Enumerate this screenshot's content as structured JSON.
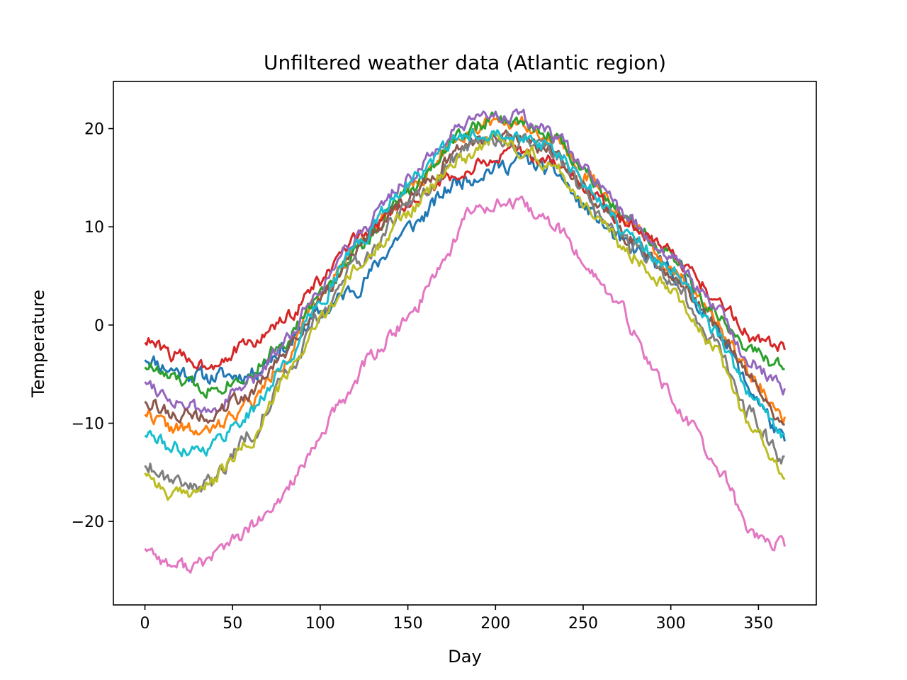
{
  "chart_data": {
    "type": "line",
    "title": "Unfiltered weather data (Atlantic region)",
    "xlabel": "Day",
    "ylabel": "Temperature",
    "xlim": [
      -18,
      383
    ],
    "ylim": [
      -28.5,
      24.8
    ],
    "xticks": [
      0,
      50,
      100,
      150,
      200,
      250,
      300,
      350
    ],
    "yticks": [
      -20,
      -10,
      0,
      10,
      20
    ],
    "xtick_labels": [
      "0",
      "50",
      "100",
      "150",
      "200",
      "250",
      "300",
      "350"
    ],
    "ytick_labels": [
      "−20",
      "−10",
      "0",
      "10",
      "20"
    ],
    "grid": false,
    "legend": "none",
    "days": 366,
    "series": [
      {
        "color": "#1f77b4",
        "x": [
          0,
          15,
          35,
          60,
          80,
          100,
          120,
          150,
          180,
          200,
          215,
          235,
          250,
          275,
          300,
          325,
          345,
          365
        ],
        "y": [
          -3.2,
          -4.5,
          -5.3,
          -5.0,
          -2.2,
          1.2,
          3.8,
          9.8,
          14.8,
          16.0,
          16.8,
          15.5,
          12.0,
          8.0,
          5.5,
          0.5,
          -6.5,
          -12.0
        ],
        "noise": 0.7,
        "seed": 11
      },
      {
        "color": "#ff7f0e",
        "x": [
          0,
          15,
          35,
          60,
          80,
          100,
          120,
          150,
          180,
          200,
          215,
          235,
          250,
          275,
          300,
          325,
          345,
          365
        ],
        "y": [
          -8.8,
          -10.5,
          -11.0,
          -8.0,
          -3.5,
          3.0,
          8.0,
          13.5,
          19.5,
          21.0,
          20.5,
          19.0,
          15.5,
          10.5,
          6.0,
          0.5,
          -5.0,
          -9.5
        ],
        "noise": 0.6,
        "seed": 22
      },
      {
        "color": "#2ca02c",
        "x": [
          0,
          15,
          35,
          60,
          80,
          100,
          120,
          150,
          180,
          200,
          215,
          235,
          250,
          275,
          300,
          325,
          345,
          365
        ],
        "y": [
          -4.0,
          -5.5,
          -6.5,
          -5.0,
          -1.5,
          3.0,
          7.5,
          13.5,
          19.5,
          21.0,
          20.5,
          19.0,
          16.0,
          11.0,
          7.0,
          1.0,
          -2.5,
          -4.5
        ],
        "noise": 0.6,
        "seed": 33
      },
      {
        "color": "#d62728",
        "x": [
          0,
          15,
          35,
          60,
          80,
          100,
          120,
          150,
          180,
          200,
          215,
          235,
          250,
          275,
          300,
          325,
          345,
          365
        ],
        "y": [
          -1.5,
          -3.0,
          -4.0,
          -2.0,
          0.5,
          4.5,
          8.5,
          12.5,
          15.5,
          17.0,
          17.5,
          16.5,
          14.0,
          10.5,
          7.5,
          3.0,
          -1.0,
          -2.5
        ],
        "noise": 0.6,
        "seed": 44
      },
      {
        "color": "#9467bd",
        "x": [
          0,
          15,
          35,
          60,
          80,
          100,
          120,
          150,
          180,
          200,
          215,
          235,
          250,
          275,
          300,
          325,
          345,
          365
        ],
        "y": [
          -5.5,
          -7.5,
          -9.0,
          -6.0,
          -1.5,
          4.0,
          9.0,
          15.0,
          20.0,
          21.5,
          21.0,
          19.0,
          16.0,
          11.0,
          7.0,
          2.0,
          -3.5,
          -6.5
        ],
        "noise": 0.6,
        "seed": 55
      },
      {
        "color": "#8c564b",
        "x": [
          0,
          15,
          35,
          60,
          80,
          100,
          120,
          150,
          180,
          200,
          215,
          235,
          250,
          275,
          300,
          325,
          345,
          365
        ],
        "y": [
          -7.5,
          -9.0,
          -9.5,
          -7.0,
          -3.0,
          2.5,
          7.5,
          13.0,
          18.0,
          19.5,
          19.0,
          17.5,
          14.0,
          9.0,
          5.5,
          0.0,
          -5.5,
          -10.0
        ],
        "noise": 0.6,
        "seed": 66
      },
      {
        "color": "#e377c2",
        "x": [
          0,
          15,
          30,
          50,
          70,
          90,
          110,
          130,
          150,
          170,
          185,
          200,
          215,
          235,
          250,
          270,
          290,
          310,
          330,
          345,
          355,
          365
        ],
        "y": [
          -22.5,
          -24.5,
          -24.5,
          -22.0,
          -19.5,
          -14.5,
          -8.5,
          -3.0,
          0.5,
          6.5,
          11.5,
          12.5,
          12.0,
          10.0,
          6.5,
          2.0,
          -4.5,
          -10.0,
          -15.5,
          -21.0,
          -22.0,
          -22.5
        ],
        "noise": 0.6,
        "seed": 77
      },
      {
        "color": "#7f7f7f",
        "x": [
          0,
          15,
          35,
          60,
          80,
          100,
          120,
          150,
          180,
          200,
          215,
          235,
          250,
          275,
          300,
          325,
          345,
          365
        ],
        "y": [
          -14.0,
          -15.5,
          -16.5,
          -11.0,
          -5.5,
          1.0,
          6.0,
          12.0,
          17.5,
          19.0,
          18.5,
          17.0,
          13.5,
          8.0,
          4.5,
          -1.5,
          -9.0,
          -14.0
        ],
        "noise": 0.7,
        "seed": 88
      },
      {
        "color": "#bcbd22",
        "x": [
          0,
          15,
          35,
          60,
          80,
          100,
          120,
          150,
          180,
          200,
          215,
          235,
          250,
          275,
          300,
          325,
          345,
          365
        ],
        "y": [
          -14.8,
          -17.5,
          -16.5,
          -12.0,
          -5.5,
          0.5,
          5.5,
          11.5,
          17.0,
          19.0,
          18.0,
          16.0,
          12.5,
          7.5,
          4.0,
          -2.5,
          -10.0,
          -15.5
        ],
        "noise": 0.6,
        "seed": 99
      },
      {
        "color": "#17becf",
        "x": [
          0,
          15,
          35,
          60,
          80,
          100,
          120,
          150,
          180,
          200,
          215,
          235,
          250,
          275,
          300,
          325,
          345,
          365
        ],
        "y": [
          -11.0,
          -12.5,
          -12.5,
          -9.0,
          -4.0,
          2.5,
          8.0,
          14.5,
          19.0,
          20.0,
          19.5,
          17.5,
          14.5,
          9.5,
          5.5,
          -0.5,
          -7.0,
          -11.5
        ],
        "noise": 0.6,
        "seed": 111
      }
    ]
  }
}
